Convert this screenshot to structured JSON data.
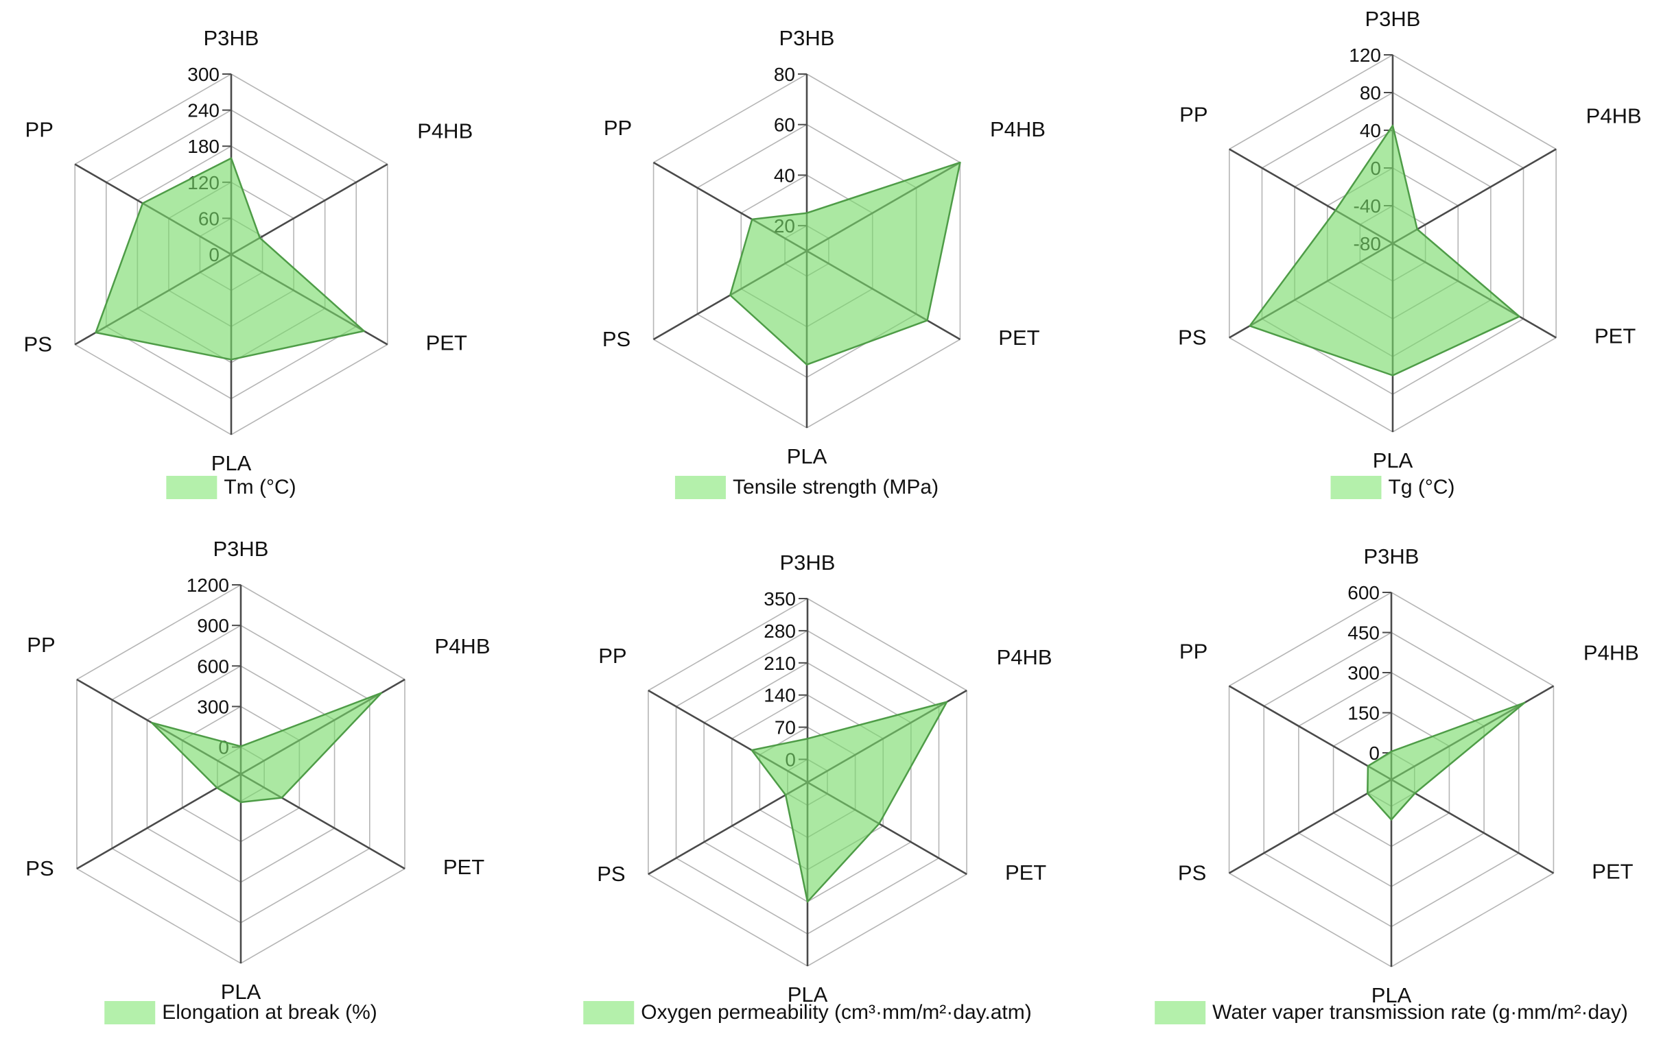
{
  "page": {
    "background": "#FFFFFF",
    "description_categories_order": [
      "P3HB",
      "P4HB",
      "PET",
      "PLA",
      "PS",
      "PP"
    ]
  },
  "colors": {
    "polygon_fill": "#78DA69",
    "polygon_fill_opacity": 0.62,
    "polygon_stroke": "#4E9C47",
    "grid_line": "#B5B5B5",
    "axis_line": "#4A4A4A",
    "legend_swatch": "#B4F0AB",
    "text": "#111111",
    "background": "#FFFFFF"
  },
  "chart_data": [
    {
      "type": "radar",
      "legend": "Tm (°C)",
      "categories": [
        "P3HB",
        "P4HB",
        "PET",
        "PLA",
        "PS",
        "PP"
      ],
      "axis": {
        "r_center": 0,
        "r_max": 300,
        "ticks": [
          0,
          60,
          120,
          180,
          240,
          300
        ]
      },
      "values": {
        "P3HB": 160,
        "P4HB": 55,
        "PET": 255,
        "PLA": 175,
        "PS": 260,
        "PP": 170
      }
    },
    {
      "type": "radar",
      "legend": "Tensile strength (MPa)",
      "categories": [
        "P3HB",
        "P4HB",
        "PET",
        "PLA",
        "PS",
        "PP"
      ],
      "axis": {
        "r_center": 10,
        "r_max": 80,
        "ticks": [
          20,
          40,
          60,
          80
        ]
      },
      "values": {
        "P3HB": 25,
        "P4HB": 80,
        "PET": 65,
        "PLA": 55,
        "PS": 45,
        "PP": 35
      }
    },
    {
      "type": "radar",
      "legend": "Tg (°C)",
      "categories": [
        "P3HB",
        "P4HB",
        "PET",
        "PLA",
        "PS",
        "PP"
      ],
      "axis": {
        "r_center": -80,
        "r_max": 120,
        "ticks": [
          -80,
          -40,
          0,
          40,
          80,
          120
        ]
      },
      "values": {
        "P3HB": 45,
        "P4HB": -50,
        "PET": 75,
        "PLA": 60,
        "PS": 95,
        "PP": -10
      }
    },
    {
      "type": "radar",
      "legend": "Elongation at break (%)",
      "categories": [
        "P3HB",
        "P4HB",
        "PET",
        "PLA",
        "PS",
        "PP"
      ],
      "axis": {
        "r_center": -200,
        "r_max": 1200,
        "ticks": [
          0,
          300,
          600,
          900,
          1200
        ]
      },
      "values": {
        "P3HB": 5,
        "P4HB": 1000,
        "PET": 150,
        "PLA": 8,
        "PS": 3,
        "PP": 560
      }
    },
    {
      "type": "radar",
      "legend": "Oxygen permeability (cm³·mm/m²·day.atm)",
      "categories": [
        "P3HB",
        "P4HB",
        "PET",
        "PLA",
        "PS",
        "PP"
      ],
      "axis": {
        "r_center": -50,
        "r_max": 350,
        "ticks": [
          0,
          70,
          140,
          210,
          280,
          350
        ]
      },
      "values": {
        "P3HB": 45,
        "P4HB": 300,
        "PET": 130,
        "PLA": 210,
        "PS": 5,
        "PP": 90
      }
    },
    {
      "type": "radar",
      "legend": "Water vaper transmission rate (g·mm/m²·day)",
      "categories": [
        "P3HB",
        "P4HB",
        "PET",
        "PLA",
        "PS",
        "PP"
      ],
      "axis": {
        "r_center": -100,
        "r_max": 600,
        "ticks": [
          0,
          150,
          300,
          450,
          600
        ]
      },
      "values": {
        "P3HB": 5,
        "P4HB": 475,
        "PET": 2,
        "PLA": 50,
        "PS": 3,
        "PP": 1
      }
    }
  ]
}
